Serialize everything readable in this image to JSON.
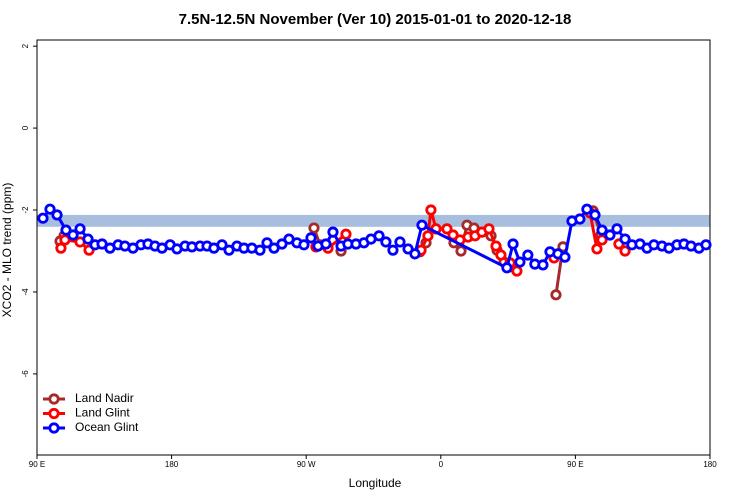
{
  "chart_data": {
    "type": "line",
    "title": "7.5N-12.5N November (Ver 10)   2015-01-01 to 2020-12-18",
    "xlabel": "Longitude",
    "ylabel": "XCO2 - MLO trend (ppm)",
    "xlim": [
      90,
      540
    ],
    "ylim": [
      -7.98,
      2.15
    ],
    "xticks": [
      {
        "value": 90,
        "label": "90 E"
      },
      {
        "value": 180,
        "label": "180"
      },
      {
        "value": 270,
        "label": "90 W"
      },
      {
        "value": 360,
        "label": "0"
      },
      {
        "value": 450,
        "label": "90 E"
      },
      {
        "value": 540,
        "label": "180"
      }
    ],
    "yticks": [
      2,
      0,
      -2,
      -4,
      -6
    ],
    "band": [
      -2.41,
      -2.12
    ],
    "band_color": "#a8bedf",
    "legend": "bottom-left",
    "series": [
      {
        "name": "Land Nadir",
        "color": "#a52a2a",
        "x": [
          105.4,
          108.1,
          null,
          275.2,
          279.2,
          null,
          293.3,
          null,
          346.1,
          350.1,
          null,
          368.8,
          373.5,
          377.5,
          382.2,
          null,
          393.6,
          397.6,
          402.3,
          407.6,
          null,
          437.0,
          441.7,
          null,
          461.8,
          467.1,
          null,
          482.5
        ],
        "values": [
          -2.76,
          -2.63,
          null,
          -2.44,
          -2.85,
          null,
          -3.0,
          null,
          -3.02,
          -2.8,
          null,
          -2.8,
          -3.0,
          -2.37,
          -2.44,
          null,
          -2.63,
          -2.98,
          -3.27,
          -3.39,
          null,
          -4.07,
          -2.9,
          null,
          -2.02,
          -2.61,
          null,
          -2.85
        ]
      },
      {
        "name": "Land Glint",
        "color": "#ff0000",
        "x": [
          106.0,
          108.7,
          118.8,
          124.8,
          null,
          276.5,
          284.6,
          296.6,
          null,
          346.8,
          351.4,
          353.4,
          356.8,
          364.1,
          368.2,
          372.8,
          378.2,
          382.9,
          387.5,
          392.2,
          396.9,
          400.2,
          406.3,
          410.9,
          null,
          435.7,
          null,
          459.8,
          464.4,
          467.8,
          null,
          479.1,
          483.2
        ],
        "values": [
          -2.93,
          -2.73,
          -2.78,
          -2.98,
          null,
          -2.9,
          -2.93,
          -2.59,
          null,
          -2.98,
          -2.63,
          -2.0,
          -2.46,
          -2.46,
          -2.61,
          -2.73,
          -2.66,
          -2.63,
          -2.54,
          -2.46,
          -2.88,
          -3.1,
          -3.29,
          -3.49,
          null,
          -3.17,
          null,
          -2.07,
          -2.95,
          -2.73,
          null,
          -2.83,
          -3.0
        ]
      },
      {
        "name": "Ocean Glint",
        "color": "#0000ff",
        "x": [
          94.0,
          98.7,
          103.4,
          109.4,
          114.1,
          118.8,
          124.1,
          128.8,
          133.5,
          138.8,
          144.2,
          148.8,
          154.2,
          159.5,
          164.2,
          168.9,
          173.6,
          179.0,
          183.6,
          189.0,
          193.6,
          199.0,
          203.7,
          208.3,
          213.7,
          218.4,
          223.7,
          228.4,
          233.7,
          239.1,
          243.8,
          248.5,
          253.8,
          258.5,
          263.8,
          268.5,
          273.2,
          277.9,
          283.2,
          287.9,
          293.3,
          297.9,
          303.3,
          308.6,
          313.3,
          318.7,
          323.3,
          328.0,
          332.7,
          338.1,
          342.7,
          347.4,
          404.2,
          408.3,
          412.9,
          418.2,
          422.9,
          428.3,
          433.0,
          438.3,
          443.0,
          447.7,
          453.0,
          457.7,
          463.1,
          467.8,
          473.1,
          477.8,
          483.2,
          487.8,
          493.2,
          497.9,
          502.5,
          507.9,
          512.6,
          517.9,
          522.6,
          527.3,
          532.6,
          537.3
        ],
        "values": [
          -2.2,
          -1.98,
          -2.12,
          -2.49,
          -2.61,
          -2.46,
          -2.71,
          -2.85,
          -2.83,
          -2.93,
          -2.85,
          -2.88,
          -2.93,
          -2.85,
          -2.83,
          -2.88,
          -2.93,
          -2.85,
          -2.95,
          -2.88,
          -2.9,
          -2.88,
          -2.88,
          -2.93,
          -2.85,
          -2.98,
          -2.88,
          -2.93,
          -2.93,
          -2.98,
          -2.8,
          -2.93,
          -2.83,
          -2.71,
          -2.8,
          -2.85,
          -2.68,
          -2.88,
          -2.83,
          -2.54,
          -2.88,
          -2.83,
          -2.83,
          -2.8,
          -2.71,
          -2.63,
          -2.78,
          -2.98,
          -2.78,
          -2.95,
          -3.07,
          -2.37,
          -3.41,
          -2.83,
          -3.27,
          -3.1,
          -3.32,
          -3.34,
          -3.02,
          -3.07,
          -3.15,
          -2.27,
          -2.22,
          -1.98,
          -2.12,
          -2.49,
          -2.61,
          -2.46,
          -2.71,
          -2.85,
          -2.83,
          -2.93,
          -2.85,
          -2.88,
          -2.93,
          -2.85,
          -2.83,
          -2.88,
          -2.93,
          -2.85
        ]
      }
    ]
  }
}
